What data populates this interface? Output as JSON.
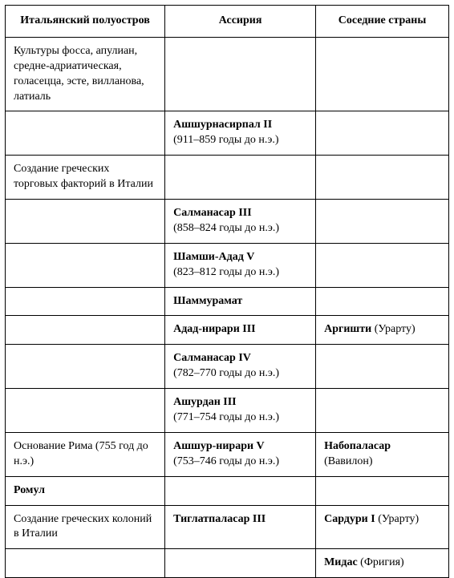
{
  "table": {
    "columns": [
      "Итальянский полуостров",
      "Ассирия",
      "Соседние страны"
    ],
    "column_widths_pct": [
      36,
      34,
      30
    ],
    "header_align": "center",
    "cell_align": "left",
    "border_color": "#000000",
    "background_color": "#ffffff",
    "text_color": "#000000",
    "font_family": "serif",
    "header_fontsize": 14,
    "cell_fontsize": 14,
    "rows": [
      {
        "c0": {
          "plain": "Культуры фосса, апулиан, средне-адриатическая, голасецца, эсте, вилланова, латиаль"
        },
        "c1": {},
        "c2": {}
      },
      {
        "c0": {},
        "c1": {
          "bold": "Ашшурнасирпал II",
          "plain": "(911–859 годы до н.э.)"
        },
        "c2": {}
      },
      {
        "c0": {
          "plain": "Создание греческих торговых факторий в Италии"
        },
        "c1": {},
        "c2": {}
      },
      {
        "c0": {},
        "c1": {
          "bold": "Салманасар III",
          "plain": "(858–824 годы до н.э.)"
        },
        "c2": {}
      },
      {
        "c0": {},
        "c1": {
          "bold": "Шамши-Адад V",
          "plain": "(823–812 годы до н.э.)"
        },
        "c2": {}
      },
      {
        "c0": {},
        "c1": {
          "bold": "Шаммурамат"
        },
        "c2": {}
      },
      {
        "c0": {},
        "c1": {
          "bold": "Адад-нирари III"
        },
        "c2": {
          "bold": "Аргишти",
          "plain": "(Урарту)"
        }
      },
      {
        "c0": {},
        "c1": {
          "bold": "Салманасар IV",
          "plain": "(782–770 годы до н.э.)"
        },
        "c2": {}
      },
      {
        "c0": {},
        "c1": {
          "bold": "Ашурдан III",
          "plain": "(771–754 годы до н.э.)"
        },
        "c2": {}
      },
      {
        "c0": {
          "plain": "Основание Рима (755 год до н.э.)"
        },
        "c1": {
          "bold": "Ашшур-нирари V",
          "plain": "(753–746 годы до н.э.)"
        },
        "c2": {
          "bold": "Набопаласар",
          "plain": "(Вавилон)"
        }
      },
      {
        "c0": {
          "bold": "Ромул"
        },
        "c1": {},
        "c2": {}
      },
      {
        "c0": {
          "plain": "Создание греческих колоний в Италии"
        },
        "c1": {
          "bold": "Тиглатпаласар III"
        },
        "c2": {
          "bold": "Сардури I",
          "plain": "(Урарту)"
        }
      },
      {
        "c0": {},
        "c1": {},
        "c2": {
          "bold": "Мидас",
          "plain": "(Фригия)"
        }
      }
    ]
  }
}
